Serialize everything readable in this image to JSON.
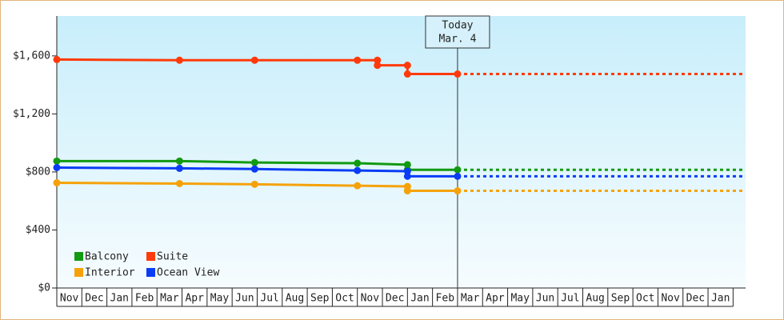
{
  "chart_data": {
    "type": "line",
    "categories": [
      "Nov",
      "Dec",
      "Jan",
      "Feb",
      "Mar",
      "Apr",
      "May",
      "Jun",
      "Jul",
      "Aug",
      "Sep",
      "Oct",
      "Nov",
      "Dec",
      "Jan",
      "Feb",
      "Mar",
      "Apr",
      "May",
      "Jun",
      "Jul",
      "Aug",
      "Sep",
      "Oct",
      "Nov",
      "Dec",
      "Jan"
    ],
    "xlim": [
      0,
      27.5
    ],
    "ylim": [
      0,
      1875
    ],
    "yticks": [
      {
        "value": 0,
        "label": "$0"
      },
      {
        "value": 400,
        "label": "$400"
      },
      {
        "value": 800,
        "label": "$800"
      },
      {
        "value": 1200,
        "label": "$1,200"
      },
      {
        "value": 1600,
        "label": "$1,600"
      }
    ],
    "annotation": {
      "lines": [
        "Today",
        "Mar. 4"
      ],
      "x": 16
    },
    "series": [
      {
        "name": "Balcony",
        "color": "#129a12",
        "x": [
          0,
          4.9,
          7.9,
          12.0,
          14.0,
          14.0,
          16.0
        ],
        "values": [
          875,
          875,
          865,
          860,
          850,
          815,
          815
        ]
      },
      {
        "name": "Suite",
        "color": "#ff3a0a",
        "x": [
          0,
          4.9,
          7.9,
          12.0,
          12.8,
          12.8,
          14.0,
          14.0,
          16.0
        ],
        "values": [
          1575,
          1570,
          1570,
          1570,
          1570,
          1535,
          1535,
          1475,
          1475
        ]
      },
      {
        "name": "Interior",
        "color": "#f5a20a",
        "x": [
          0,
          4.9,
          7.9,
          12.0,
          14.0,
          14.0,
          16.0
        ],
        "values": [
          725,
          720,
          715,
          705,
          700,
          670,
          670
        ]
      },
      {
        "name": "Ocean View",
        "color": "#0a3cf5",
        "x": [
          0,
          4.9,
          7.9,
          12.0,
          14.0,
          14.0,
          16.0
        ],
        "values": [
          830,
          825,
          820,
          810,
          805,
          770,
          770
        ]
      }
    ]
  }
}
